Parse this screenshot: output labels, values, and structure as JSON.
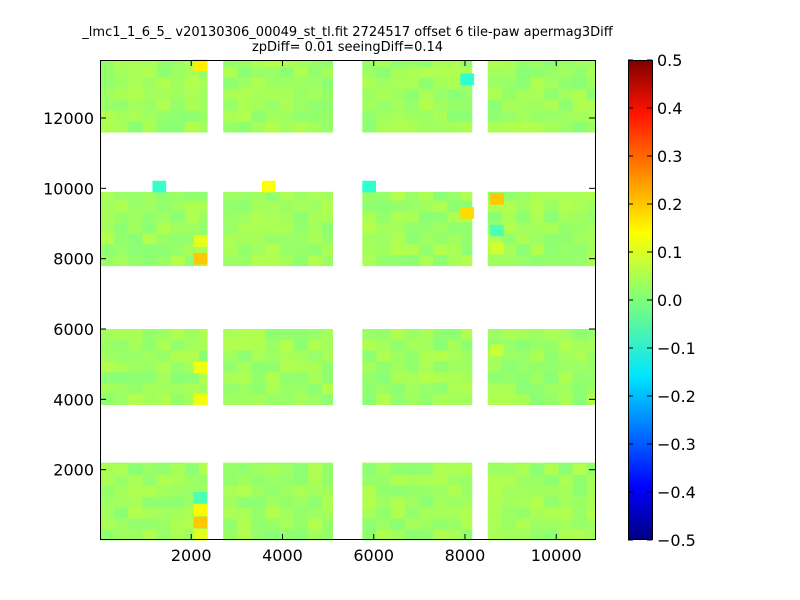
{
  "chart_data": {
    "type": "heatmap",
    "title": "_lmc1_1_6_5_ v20130306_00049_st_tl.fit 2724517 offset 6 tile-paw apermag3Diff",
    "subtitle": "zpDiff= 0.01 seeingDiff=0.14",
    "xlabel": "",
    "ylabel": "",
    "xlim": [
      0,
      10850
    ],
    "ylim": [
      0,
      13650
    ],
    "x_ticks": [
      2000,
      4000,
      6000,
      8000,
      10000
    ],
    "y_ticks": [
      2000,
      4000,
      6000,
      8000,
      10000,
      12000
    ],
    "colorbar": {
      "colormap": "jet",
      "vmin": -0.5,
      "vmax": 0.5,
      "tick_labels": [
        "0.5",
        "0.4",
        "0.3",
        "0.2",
        "0.1",
        "0.0",
        "−0.1",
        "−0.2",
        "−0.3",
        "−0.4",
        "−0.5"
      ]
    },
    "x_tick_labels": [
      "2000",
      "4000",
      "6000",
      "8000",
      "10000"
    ],
    "y_tick_labels": [
      "2000",
      "4000",
      "6000",
      "8000",
      "10000",
      "12000"
    ],
    "column_x_ranges": [
      [
        0,
        2350
      ],
      [
        2700,
        5100
      ],
      [
        5750,
        8150
      ],
      [
        8500,
        10850
      ]
    ],
    "row_y_ranges": [
      [
        0,
        2200
      ],
      [
        3850,
        6000
      ],
      [
        7800,
        9900
      ],
      [
        11600,
        13650
      ]
    ],
    "typical_value": 0.03,
    "notable_cells": [
      {
        "x": 2200,
        "y": 13500,
        "value": 0.14
      },
      {
        "x": 8050,
        "y": 13100,
        "value": -0.08
      },
      {
        "x": 1300,
        "y": 10050,
        "value": -0.07
      },
      {
        "x": 3700,
        "y": 10050,
        "value": 0.12
      },
      {
        "x": 5900,
        "y": 10050,
        "value": -0.08
      },
      {
        "x": 8050,
        "y": 9300,
        "value": 0.16
      },
      {
        "x": 8700,
        "y": 9700,
        "value": 0.18
      },
      {
        "x": 2200,
        "y": 8000,
        "value": 0.18
      },
      {
        "x": 2200,
        "y": 8500,
        "value": 0.1
      },
      {
        "x": 8700,
        "y": 8800,
        "value": -0.05
      },
      {
        "x": 8700,
        "y": 8300,
        "value": 0.08
      },
      {
        "x": 2200,
        "y": 4900,
        "value": 0.11
      },
      {
        "x": 2200,
        "y": 4000,
        "value": 0.11
      },
      {
        "x": 8700,
        "y": 5400,
        "value": 0.07
      },
      {
        "x": 2200,
        "y": 1200,
        "value": -0.05
      },
      {
        "x": 2200,
        "y": 850,
        "value": 0.13
      },
      {
        "x": 2200,
        "y": 500,
        "value": 0.18
      },
      {
        "x": 2200,
        "y": 150,
        "value": 0.1
      }
    ]
  }
}
